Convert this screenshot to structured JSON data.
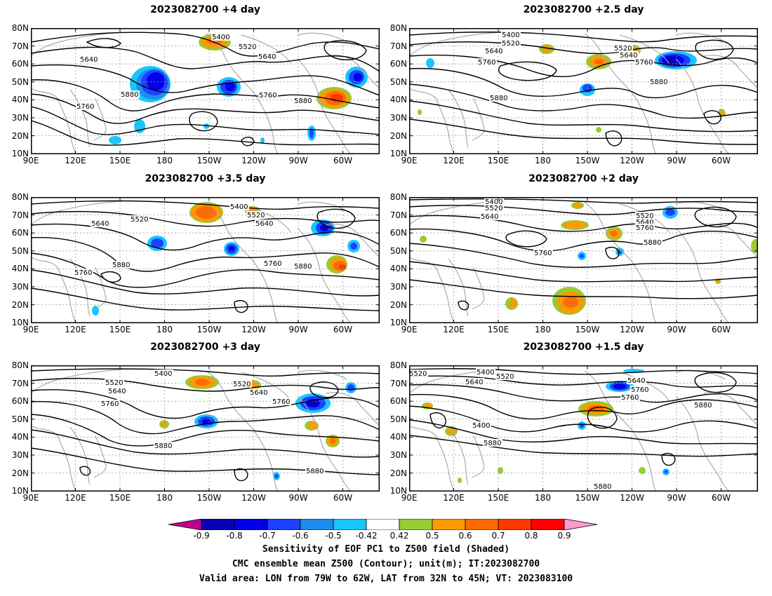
{
  "panels": [
    {
      "title": "2023082700 +4 day",
      "heights": [
        "5400",
        "5520",
        "5640",
        "5640",
        "5760",
        "5760",
        "5880",
        "5880"
      ]
    },
    {
      "title": "2023082700 +2.5 day",
      "heights": [
        "5400",
        "5520",
        "5520",
        "5640",
        "5640",
        "5760",
        "5760",
        "5880",
        "5880"
      ]
    },
    {
      "title": "2023082700 +3.5 day",
      "heights": [
        "5400",
        "5520",
        "5520",
        "5640",
        "5640",
        "5760",
        "5760",
        "5880",
        "5880"
      ]
    },
    {
      "title": "2023082700 +2 day",
      "heights": [
        "5400",
        "5520",
        "5520",
        "5640",
        "5640",
        "5760",
        "5760",
        "5880"
      ]
    },
    {
      "title": "2023082700 +3 day",
      "heights": [
        "5400",
        "5520",
        "5520",
        "5640",
        "5640",
        "5760",
        "5760",
        "5880",
        "5880"
      ]
    },
    {
      "title": "2023082700 +1.5 day",
      "heights": [
        "5400",
        "5520",
        "5520",
        "5640",
        "5640",
        "5760",
        "5760",
        "5400",
        "5880",
        "5880",
        "5880"
      ]
    }
  ],
  "lat_ticks": [
    "80N",
    "70N",
    "60N",
    "50N",
    "40N",
    "30N",
    "20N",
    "10N"
  ],
  "lon_ticks": [
    "90E",
    "120E",
    "150E",
    "180",
    "150W",
    "120W",
    "90W",
    "60W"
  ],
  "legend": {
    "labels": [
      "-0.9",
      "-0.8",
      "-0.7",
      "-0.6",
      "-0.5",
      "-0.42",
      "0.42",
      "0.5",
      "0.6",
      "0.7",
      "0.8",
      "0.9"
    ],
    "colors": [
      "#c00090",
      "#0a00b4",
      "#0000e8",
      "#1c40ff",
      "#1c8cf0",
      "#18c6ff",
      "#ffffff",
      "#96cc32",
      "#ff9900",
      "#ff6a00",
      "#ff3800",
      "#ff0000",
      "#ff99cc"
    ]
  },
  "captions": {
    "line1": "Sensitivity of EOF PC1 to Z500 field (Shaded)",
    "line2": "CMC ensemble mean Z500 (Contour); unit(m); IT:2023082700",
    "line3": "Valid area: LON from 79W to 62W, LAT from 32N to 45N; VT: 2023083100"
  }
}
